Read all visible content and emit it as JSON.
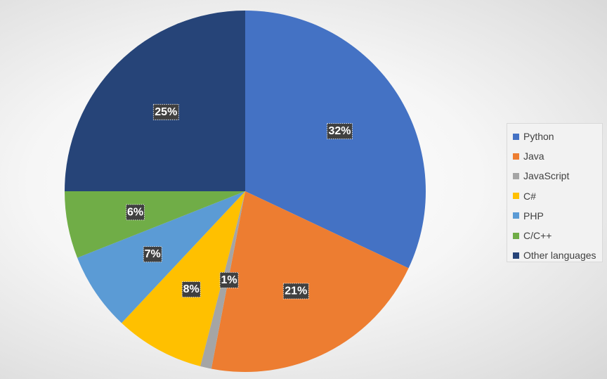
{
  "chart_data": {
    "type": "pie",
    "title": "",
    "legend_position": "right",
    "slices": [
      {
        "name": "Python",
        "value": 32,
        "label": "32%",
        "color": "#4472C4"
      },
      {
        "name": "Java",
        "value": 21,
        "label": "21%",
        "color": "#ED7D31"
      },
      {
        "name": "JavaScript",
        "value": 1,
        "label": "1%",
        "color": "#A5A5A5"
      },
      {
        "name": "C#",
        "value": 8,
        "label": "8%",
        "color": "#FFC000"
      },
      {
        "name": "PHP",
        "value": 7,
        "label": "7%",
        "color": "#5B9BD5"
      },
      {
        "name": "C/C++",
        "value": 6,
        "label": "6%",
        "color": "#70AD47"
      },
      {
        "name": "Other languages",
        "value": 25,
        "label": "25%",
        "color": "#264478"
      }
    ]
  },
  "colors": {
    "data_label_background": "#404040",
    "data_label_text": "#FFFFFF",
    "legend_text": "#404040"
  }
}
